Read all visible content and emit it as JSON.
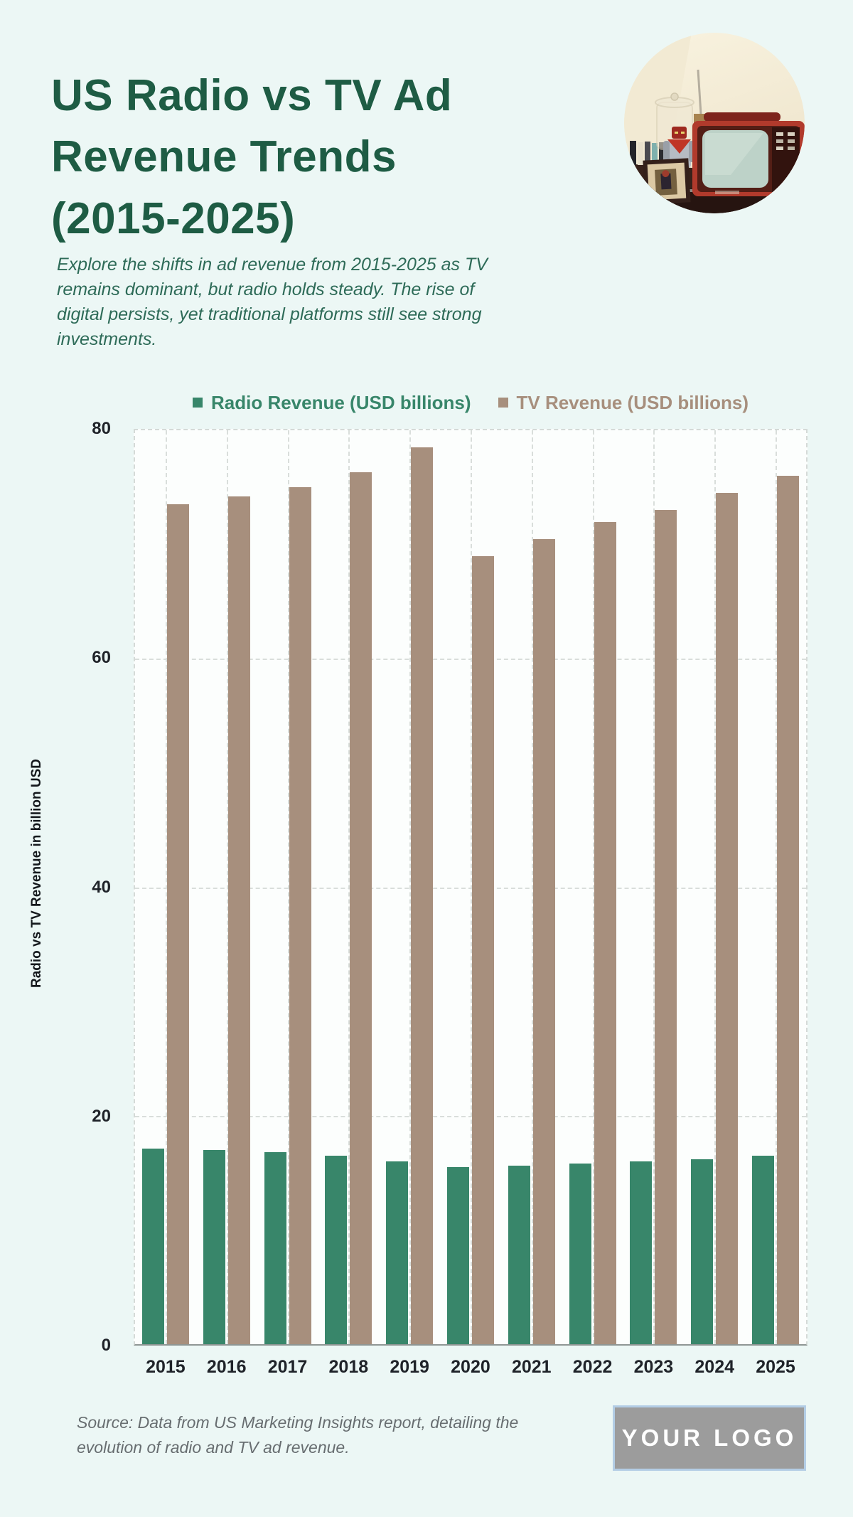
{
  "page": {
    "title": "US Radio vs TV Ad Revenue Trends (2015-2025)",
    "subtitle": "Explore the shifts in ad revenue from 2015-2025 as TV remains dominant, but radio holds steady. The rise of digital persists, yet traditional platforms still see strong investments.",
    "source_note": "Source: Data from US Marketing Insights report, detailing the evolution of radio and TV ad revenue.",
    "logo_text": "YOUR LOGO"
  },
  "colors": {
    "background": "#ecf7f5",
    "title_green": "#1e5c44",
    "radio_green": "#38866a",
    "tv_tan": "#a78f7d",
    "logo_gray": "#9c9c9c",
    "logo_border_blue": "#b3cde5"
  },
  "chart_data": {
    "type": "bar",
    "title": "",
    "categories": [
      "2015",
      "2016",
      "2017",
      "2018",
      "2019",
      "2020",
      "2021",
      "2022",
      "2023",
      "2024",
      "2025"
    ],
    "series": [
      {
        "name": "Radio Revenue (USD billions)",
        "color": "#38866a",
        "values": [
          17.1,
          17.0,
          16.8,
          16.5,
          16.0,
          15.5,
          15.6,
          15.8,
          16.0,
          16.2,
          16.5
        ]
      },
      {
        "name": "TV Revenue (USD billions)",
        "color": "#a78f7d",
        "values": [
          73.5,
          74.2,
          75.0,
          76.3,
          78.5,
          69.0,
          70.5,
          72.0,
          73.0,
          74.5,
          76.0
        ]
      }
    ],
    "xlabel": "",
    "ylabel": "Radio vs TV Revenue in billion USD",
    "ylim": [
      0,
      80
    ],
    "yticks": [
      0,
      20,
      40,
      60,
      80
    ],
    "grid": true,
    "legend_position": "top"
  }
}
